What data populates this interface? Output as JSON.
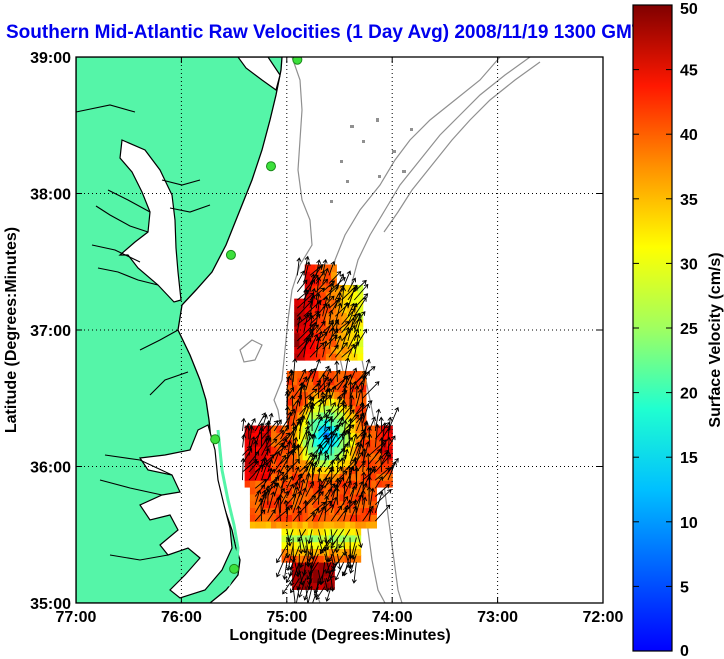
{
  "title": "Southern Mid-Atlantic Raw Velocities (1 Day Avg) 2008/11/19 1300 GMT",
  "map": {
    "x_axis_label": "Longitude (Degrees:Minutes)",
    "y_axis_label": "Latitude (Degrees:Minutes)",
    "x_ticks": [
      "77:00",
      "76:00",
      "75:00",
      "74:00",
      "73:00",
      "72:00"
    ],
    "y_ticks": [
      "39:00",
      "38:00",
      "37:00",
      "36:00",
      "35:00"
    ],
    "lon_range": [
      -77,
      -72
    ],
    "lat_range": [
      35,
      39
    ],
    "land_color": "#55f5a8",
    "water_color": "#ffffff"
  },
  "colorbar": {
    "label": "Surface Velocity (cm/s)",
    "ticks": [
      "50",
      "45",
      "40",
      "35",
      "30",
      "25",
      "20",
      "15",
      "10",
      "5",
      "0"
    ],
    "range": [
      0,
      50
    ],
    "colormap": "jet"
  },
  "chart_data": {
    "type": "heatmap",
    "title": "Southern Mid-Atlantic Raw Velocities (1 Day Avg) 2008/11/19 1300 GMT",
    "xlabel": "Longitude (Degrees:Minutes)",
    "ylabel": "Latitude (Degrees:Minutes)",
    "xlim": [
      -77,
      -72
    ],
    "ylim": [
      35,
      39
    ],
    "color_range": [
      0,
      50
    ],
    "grid": true,
    "stations": [
      {
        "lon": -74.9,
        "lat": 38.98
      },
      {
        "lon": -75.15,
        "lat": 38.2
      },
      {
        "lon": -75.53,
        "lat": 37.55
      },
      {
        "lon": -75.68,
        "lat": 36.2
      },
      {
        "lon": -75.5,
        "lat": 35.25
      }
    ],
    "regions": [
      {
        "name": "north-patch",
        "lon_range": [
          -74.95,
          -74.3
        ],
        "lat_range": [
          36.75,
          37.45
        ]
      },
      {
        "name": "south-patch",
        "lon_range": [
          -75.45,
          -73.95
        ],
        "lat_range": [
          35.1,
          36.7
        ]
      }
    ]
  }
}
